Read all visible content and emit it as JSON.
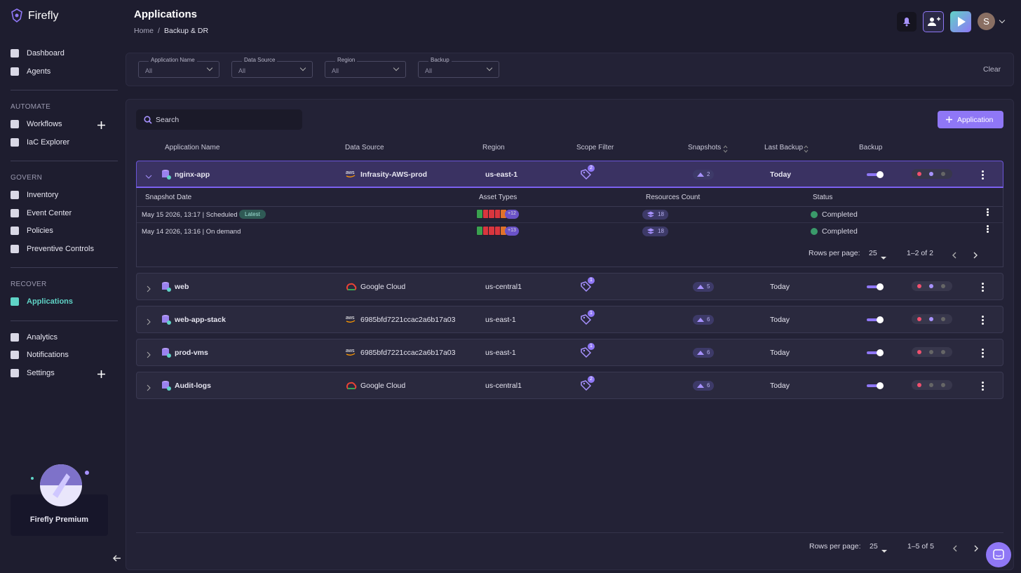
{
  "sidebar": {
    "brand": "Firefly",
    "groups": [
      {
        "items": [
          "Dashboard",
          "Agents"
        ]
      },
      {
        "title": "AUTOMATE",
        "items": [
          "Workflows",
          "IaC Explorer"
        ]
      },
      {
        "title": "GOVERN",
        "items": [
          "Inventory",
          "Event Center",
          "Policies",
          "Preventive Controls"
        ]
      },
      {
        "title": "RECOVER",
        "items": [
          "Applications"
        ]
      },
      {
        "items": [
          "Analytics",
          "Notifications",
          "Settings"
        ]
      }
    ],
    "premium": "Firefly Premium"
  },
  "header": {
    "title": "Applications",
    "breadcrumb": [
      "Home",
      "Backup & DR"
    ],
    "avatar": "S"
  },
  "filters": {
    "fields": [
      {
        "label": "Application Name",
        "value": "All"
      },
      {
        "label": "Data Source",
        "value": "All"
      },
      {
        "label": "Region",
        "value": "All"
      },
      {
        "label": "Backup",
        "value": "All"
      }
    ],
    "clear": "Clear"
  },
  "table": {
    "search": "Search",
    "add_button": "Application",
    "columns": [
      "Application Name",
      "Data Source",
      "Region",
      "Scope Filter",
      "Snapshots",
      "Last Backup",
      "Backup"
    ],
    "rows": [
      {
        "name": "nginx-app",
        "source": "Infrasity-AWS-prod",
        "region": "us-east-1",
        "scope": 2,
        "snapshots": 2,
        "last_backup": "Today"
      },
      {
        "name": "web",
        "source": "Google Cloud",
        "region": "us-central1",
        "scope": 1,
        "snapshots": 5,
        "last_backup": "Today"
      },
      {
        "name": "web-app-stack",
        "source": "6985bfd7221ccac2a6b17a03",
        "region": "us-east-1",
        "scope": 1,
        "snapshots": 6,
        "last_backup": "Today"
      },
      {
        "name": "prod-vms",
        "source": "6985bfd7221ccac2a6b17a03",
        "region": "us-east-1",
        "scope": 1,
        "snapshots": 6,
        "last_backup": "Today"
      },
      {
        "name": "Audit-logs",
        "source": "Google Cloud",
        "region": "us-central1",
        "scope": 2,
        "snapshots": 6,
        "last_backup": "Today"
      }
    ],
    "expanded": {
      "columns": [
        "Snapshot Date",
        "Asset Types",
        "Resources Count",
        "Status"
      ],
      "rows": [
        {
          "date": "May 15 2026, 13:17 | Scheduled",
          "badge": "Latest",
          "more": "+12",
          "count": 18,
          "status": "Completed"
        },
        {
          "date": "May 14 2026, 13:16 | On demand",
          "more": "+13",
          "count": 18,
          "status": "Completed"
        }
      ],
      "pagination": {
        "rows_label": "Rows per page:",
        "per_page": 25,
        "range": "1–2 of 2"
      }
    },
    "pagination": {
      "rows_label": "Rows per page:",
      "per_page": 25,
      "range": "1–5 of 5"
    }
  }
}
